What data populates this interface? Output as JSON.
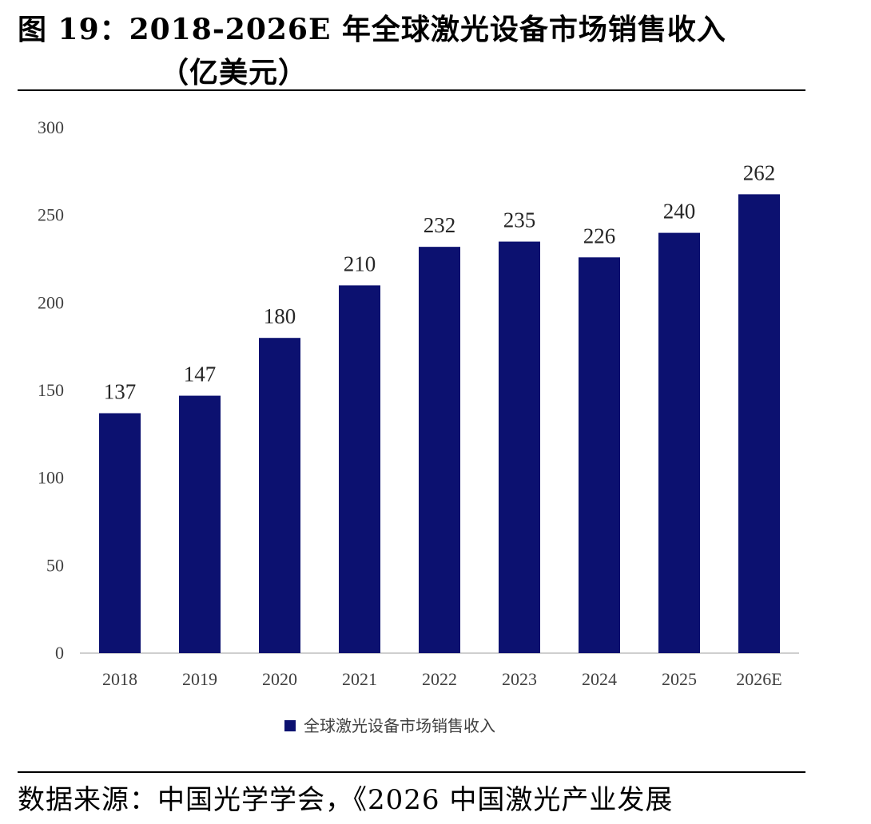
{
  "header": {
    "title_line1": "图 19：2018-2026E 年全球激光设备市场销售收入",
    "title_line2": "（亿美元）"
  },
  "footer": {
    "source": "数据来源：中国光学学会，《2026 中国激光产业发展"
  },
  "colors": {
    "bar": "#0c1170",
    "axis": "#bfbfbf",
    "text": "#404040"
  },
  "chart_data": {
    "type": "bar",
    "categories": [
      "2018",
      "2019",
      "2020",
      "2021",
      "2022",
      "2023",
      "2024",
      "2025",
      "2026E"
    ],
    "series": [
      {
        "name": "全球激光设备市场销售收入",
        "values": [
          137,
          147,
          180,
          210,
          232,
          235,
          226,
          240,
          262
        ]
      }
    ],
    "ylim": [
      0,
      300
    ],
    "yticks": [
      0,
      50,
      100,
      150,
      200,
      250,
      300
    ],
    "grid": false,
    "legend": "bottom",
    "data_labels": true
  }
}
